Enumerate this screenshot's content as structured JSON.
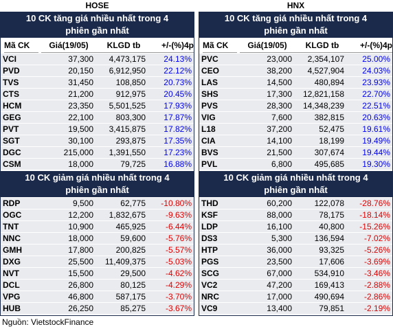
{
  "panels": [
    {
      "title": "HOSE",
      "gainers": {
        "title": "10 CK tăng giá nhiều nhất trong 4 phiên gần nhất",
        "columns": [
          "Mã CK",
          "Giá(19/05)",
          "KLGD tb",
          "+/-(%)4p"
        ],
        "rows": [
          [
            "VCI",
            "37,300",
            "4,473,175",
            "24.13%"
          ],
          [
            "PVD",
            "20,150",
            "6,912,950",
            "22.12%"
          ],
          [
            "TVS",
            "31,450",
            "108,850",
            "20.73%"
          ],
          [
            "CTS",
            "21,200",
            "912,975",
            "20.45%"
          ],
          [
            "HCM",
            "23,350",
            "5,501,525",
            "17.93%"
          ],
          [
            "GEG",
            "22,100",
            "803,300",
            "17.87%"
          ],
          [
            "PVT",
            "19,500",
            "3,415,875",
            "17.82%"
          ],
          [
            "SGT",
            "30,100",
            "293,875",
            "17.35%"
          ],
          [
            "DGC",
            "215,000",
            "1,391,550",
            "17.23%"
          ],
          [
            "CSM",
            "18,000",
            "79,725",
            "16.88%"
          ]
        ]
      },
      "losers": {
        "title": "10 CK giảm giá nhiều nhất trong 4 phiên gần nhất",
        "rows": [
          [
            "RDP",
            "9,500",
            "62,775",
            "-10.80%"
          ],
          [
            "OGC",
            "12,200",
            "1,832,675",
            "-9.63%"
          ],
          [
            "TNT",
            "10,900",
            "465,925",
            "-6.44%"
          ],
          [
            "NNC",
            "18,000",
            "59,600",
            "-5.76%"
          ],
          [
            "GMH",
            "17,800",
            "200,825",
            "-5.57%"
          ],
          [
            "DXG",
            "25,500",
            "11,409,375",
            "-5.03%"
          ],
          [
            "NVT",
            "15,500",
            "29,500",
            "-4.62%"
          ],
          [
            "DCL",
            "26,800",
            "80,125",
            "-4.29%"
          ],
          [
            "VPG",
            "46,800",
            "587,175",
            "-3.70%"
          ],
          [
            "HUB",
            "26,250",
            "85,275",
            "-3.67%"
          ]
        ]
      }
    },
    {
      "title": "HNX",
      "gainers": {
        "title": "10 CK tăng giá nhiều nhất trong 4 phiên gần nhất",
        "columns": [
          "Mã CK",
          "Giá(19/05)",
          "KLGD tb",
          "+/-(%)4p"
        ],
        "rows": [
          [
            "PVC",
            "23,000",
            "2,354,107",
            "25.00%"
          ],
          [
            "CEO",
            "38,200",
            "4,527,904",
            "24.03%"
          ],
          [
            "LAS",
            "14,500",
            "480,894",
            "23.93%"
          ],
          [
            "SHS",
            "17,300",
            "12,821,158",
            "22.70%"
          ],
          [
            "PVS",
            "28,300",
            "14,348,239",
            "22.51%"
          ],
          [
            "VIG",
            "7,600",
            "382,815",
            "20.63%"
          ],
          [
            "L18",
            "37,200",
            "52,475",
            "19.61%"
          ],
          [
            "CIA",
            "14,100",
            "18,199",
            "19.49%"
          ],
          [
            "BVS",
            "21,500",
            "307,674",
            "19.44%"
          ],
          [
            "PVL",
            "6,800",
            "495,685",
            "19.30%"
          ]
        ]
      },
      "losers": {
        "title": "10 CK giảm giá nhiều nhất trong 4 phiên gần nhất",
        "rows": [
          [
            "THD",
            "60,200",
            "122,078",
            "-28.76%"
          ],
          [
            "KSF",
            "88,000",
            "78,175",
            "-18.14%"
          ],
          [
            "LDP",
            "16,100",
            "40,800",
            "-15.26%"
          ],
          [
            "DS3",
            "5,300",
            "136,594",
            "-7.02%"
          ],
          [
            "HTP",
            "36,000",
            "93,325",
            "-5.26%"
          ],
          [
            "PGS",
            "23,500",
            "17,606",
            "-3.69%"
          ],
          [
            "SCG",
            "67,000",
            "534,910",
            "-3.46%"
          ],
          [
            "VC2",
            "47,200",
            "169,413",
            "-2.88%"
          ],
          [
            "NRC",
            "17,000",
            "490,694",
            "-2.86%"
          ],
          [
            "VC9",
            "13,400",
            "79,851",
            "-2.19%"
          ]
        ]
      }
    }
  ],
  "source": "Nguồn: VietstockFinance"
}
